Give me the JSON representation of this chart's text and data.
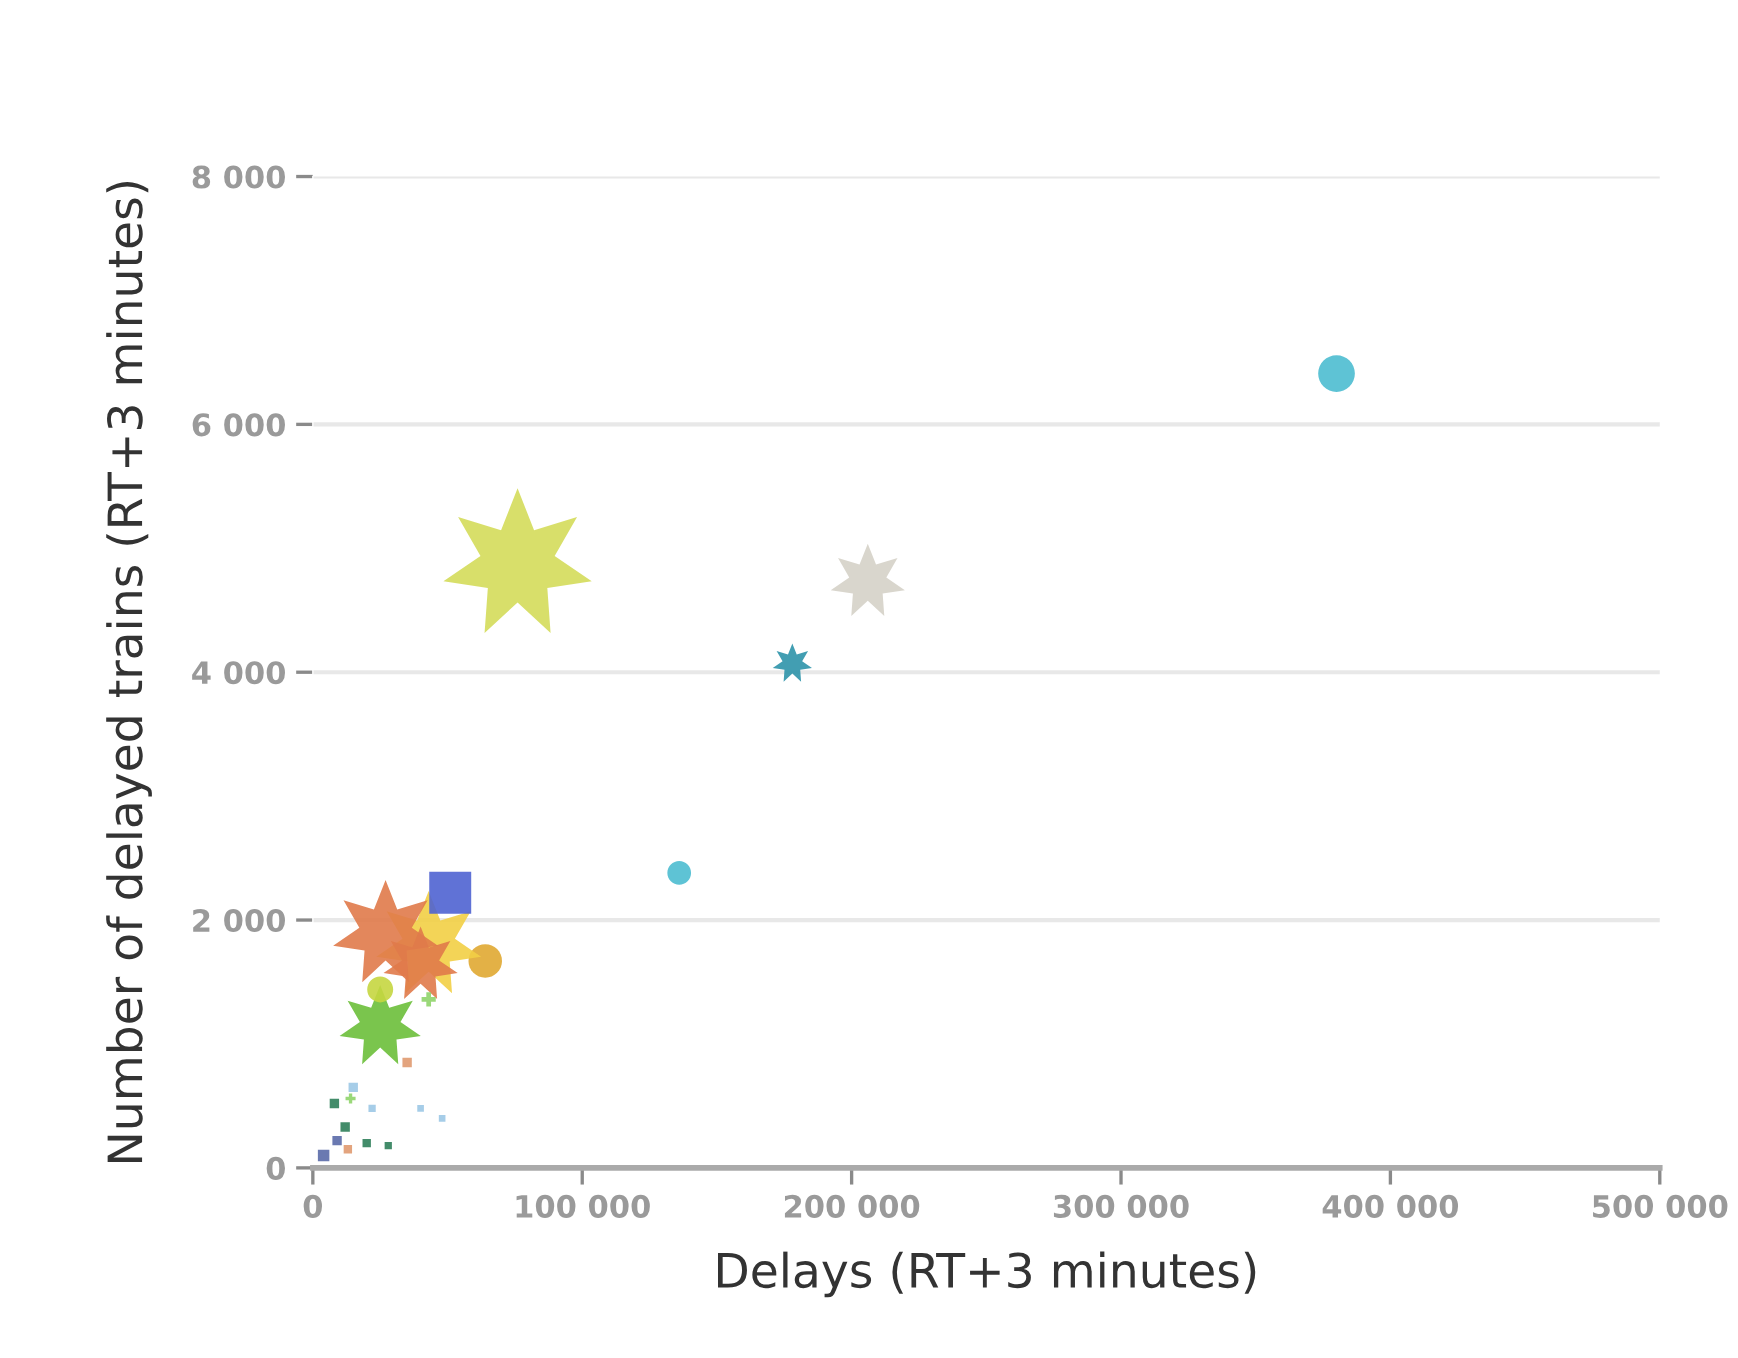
{
  "chart_data": {
    "type": "bubble",
    "xlabel": "Delays (RT+3 minutes)",
    "ylabel": "Number of delayed trains (RT+3 minutes)",
    "xlim": [
      0,
      500000
    ],
    "ylim": [
      0,
      8000
    ],
    "xticks": [
      {
        "value": 0,
        "label": "0"
      },
      {
        "value": 100000,
        "label": "100 000"
      },
      {
        "value": 200000,
        "label": "200 000"
      },
      {
        "value": 300000,
        "label": "300 000"
      },
      {
        "value": 400000,
        "label": "400 000"
      },
      {
        "value": 500000,
        "label": "500 000"
      }
    ],
    "yticks": [
      {
        "value": 0,
        "label": "0"
      },
      {
        "value": 2000,
        "label": "2 000"
      },
      {
        "value": 4000,
        "label": "4 000"
      },
      {
        "value": 6000,
        "label": "6 000"
      },
      {
        "value": 8000,
        "label": "8 000"
      }
    ],
    "grid": "y",
    "legend": false,
    "series": [
      {
        "color": "#d4dc5a",
        "marker": "star",
        "x": [
          76000
        ],
        "values": [
          4870
        ],
        "sizes": [
          1
        ]
      },
      {
        "color": "#e0a832",
        "marker": "circle",
        "x": [
          64000
        ],
        "values": [
          1670
        ],
        "sizes": [
          0.1
        ]
      },
      {
        "color": "#f2cf45",
        "marker": "star",
        "x": [
          43000
        ],
        "values": [
          1800
        ],
        "sizes": [
          0.5
        ]
      },
      {
        "color": "#e07a4a",
        "marker": "star",
        "x": [
          27000,
          40000
        ],
        "values": [
          1890,
          1640
        ],
        "sizes": [
          0.5,
          0.25
        ]
      },
      {
        "color": "#4f63d2",
        "marker": "square",
        "x": [
          51000
        ],
        "values": [
          2220
        ],
        "sizes": [
          0.2
        ]
      },
      {
        "color": "#6cbf3a",
        "marker": "star",
        "x": [
          25000
        ],
        "values": [
          1140
        ],
        "sizes": [
          0.3
        ]
      },
      {
        "color": "#c5d640",
        "marker": "circle",
        "x": [
          25000
        ],
        "values": [
          1440
        ],
        "sizes": [
          0.06
        ]
      },
      {
        "color": "#8fd46a",
        "marker": "cross",
        "x": [
          43000,
          14000
        ],
        "values": [
          1360,
          560
        ],
        "sizes": [
          0.02,
          0.01
        ]
      },
      {
        "color": "#d5d2c8",
        "marker": "star",
        "x": [
          206000
        ],
        "values": [
          4730
        ],
        "sizes": [
          0.25
        ]
      },
      {
        "color": "#2e93aa",
        "marker": "star",
        "x": [
          178000
        ],
        "values": [
          4070
        ],
        "sizes": [
          0.07
        ]
      },
      {
        "color": "#4cbcd0",
        "marker": "circle",
        "x": [
          380000,
          136000
        ],
        "values": [
          6410,
          2380
        ],
        "sizes": [
          0.12,
          0.05
        ]
      },
      {
        "color": "#2f7f5a",
        "marker": "square",
        "x": [
          8000,
          20000,
          12000,
          28000
        ],
        "values": [
          520,
          200,
          330,
          180
        ],
        "sizes": [
          0.01,
          0.008,
          0.01,
          0.006
        ]
      },
      {
        "color": "#9cc8e6",
        "marker": "square",
        "x": [
          15000,
          22000,
          40000,
          48000
        ],
        "values": [
          650,
          480,
          480,
          400
        ],
        "sizes": [
          0.01,
          0.006,
          0.005,
          0.005
        ]
      },
      {
        "color": "#5a6aa8",
        "marker": "square",
        "x": [
          4000,
          9000
        ],
        "values": [
          100,
          220
        ],
        "sizes": [
          0.015,
          0.01
        ]
      },
      {
        "color": "#e09a70",
        "marker": "square",
        "x": [
          13000,
          35000
        ],
        "values": [
          150,
          850
        ],
        "sizes": [
          0.008,
          0.01
        ]
      }
    ]
  }
}
